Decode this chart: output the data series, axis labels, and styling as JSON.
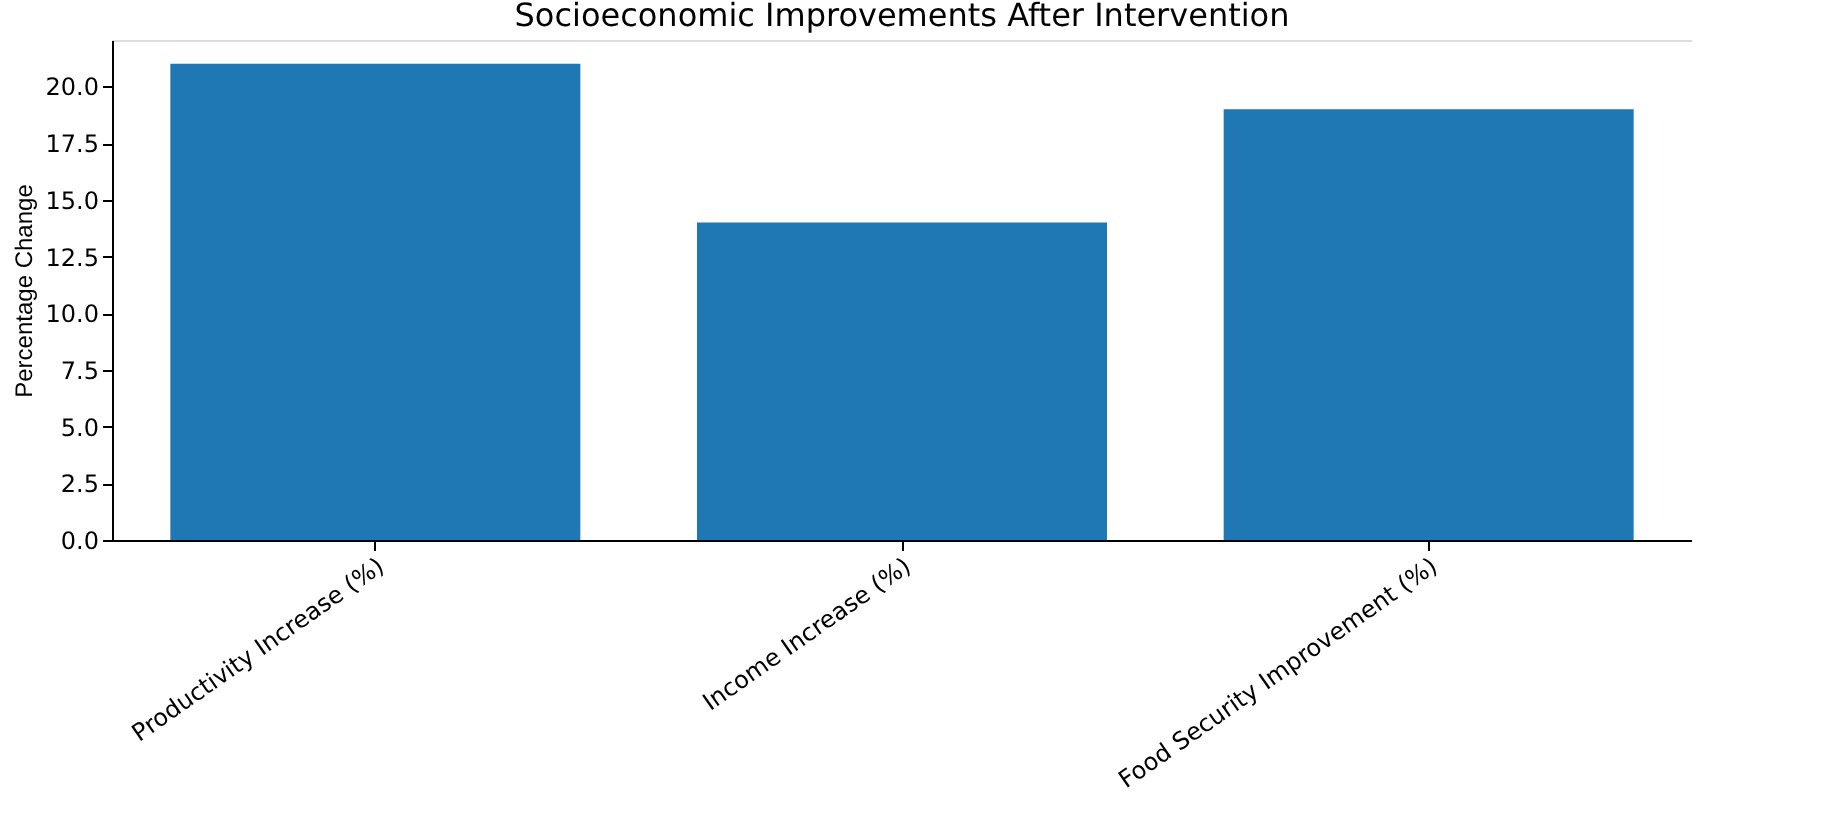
{
  "chart_data": {
    "type": "bar",
    "title": "Socioeconomic Improvements After Intervention",
    "ylabel": "Percentage Change",
    "categories": [
      "Productivity Increase (%)",
      "Income Increase (%)",
      "Food Security Improvement (%)"
    ],
    "values": [
      21,
      14,
      19
    ],
    "color": "#1f77b4",
    "ylim": [
      0,
      22.05
    ],
    "yticks": [
      {
        "value": 0,
        "label": "0.0"
      },
      2.5,
      {
        "value": 5,
        "label": "5.0"
      },
      7.5,
      {
        "value": 10,
        "label": "10.0"
      },
      12.5,
      {
        "value": 15,
        "label": "15.0"
      },
      17.5,
      {
        "value": 20,
        "label": "20.0"
      }
    ],
    "grid": false
  }
}
